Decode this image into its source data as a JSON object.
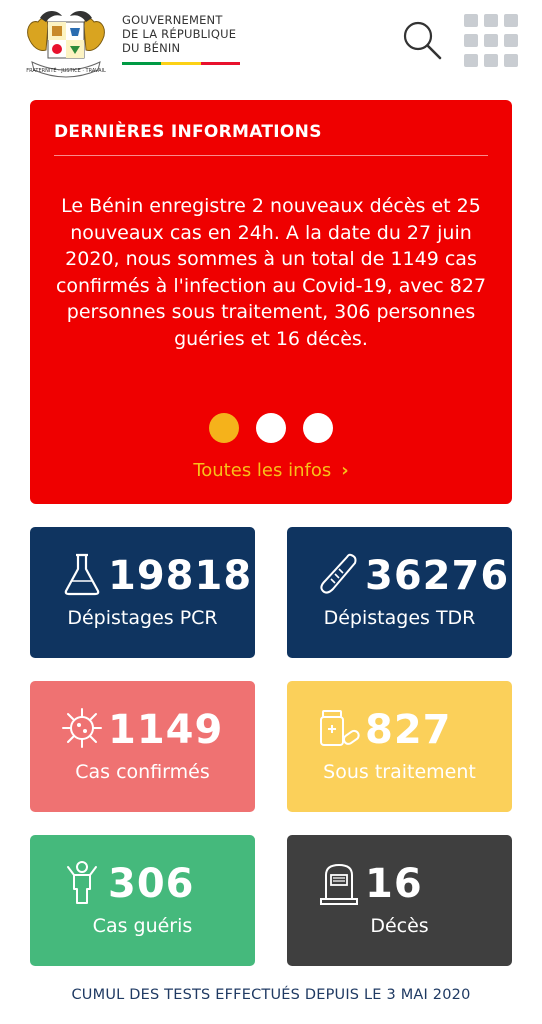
{
  "header": {
    "gov_line1": "GOUVERNEMENT",
    "gov_line2": "DE LA RÉPUBLIQUE",
    "gov_line3": "DU BÉNIN",
    "flag_colors": [
      "#009a44",
      "#fcd116",
      "#e8112d"
    ],
    "search_icon": "search-icon",
    "menu_icon": "grid-menu-icon"
  },
  "news": {
    "background": "#ef0000",
    "title": "DERNIÈRES INFORMATIONS",
    "body": "Le Bénin enregistre 2 nouveaux décès et 25 nouveaux cas en 24h. A la date du 27 juin 2020, nous sommes à un total de 1149 cas confirmés à l'infection au Covid-19, avec 827 personnes sous traitement, 306 personnes guéries et 16 décès.",
    "dots": 3,
    "active_dot": 0,
    "active_dot_color": "#f5b21b",
    "link_label": "Toutes les infos",
    "link_color": "#f7c01a"
  },
  "stats": [
    {
      "value": "19818",
      "label": "Dépistages PCR",
      "color": "#0f3460",
      "icon": "flask-icon"
    },
    {
      "value": "36276",
      "label": "Dépistages TDR",
      "color": "#0f3460",
      "icon": "thermometer-icon"
    },
    {
      "value": "1149",
      "label": "Cas confirmés",
      "color": "#ef7272",
      "icon": "virus-icon"
    },
    {
      "value": "827",
      "label": "Sous traitement",
      "color": "#fbd05a",
      "icon": "medicine-icon"
    },
    {
      "value": "306",
      "label": "Cas guéris",
      "color": "#45b97c",
      "icon": "person-icon"
    },
    {
      "value": "16",
      "label": "Décès",
      "color": "#3f3f3f",
      "icon": "tombstone-icon"
    }
  ],
  "footer": "CUMUL DES TESTS EFFECTUÉS DEPUIS LE 3 MAI 2020"
}
